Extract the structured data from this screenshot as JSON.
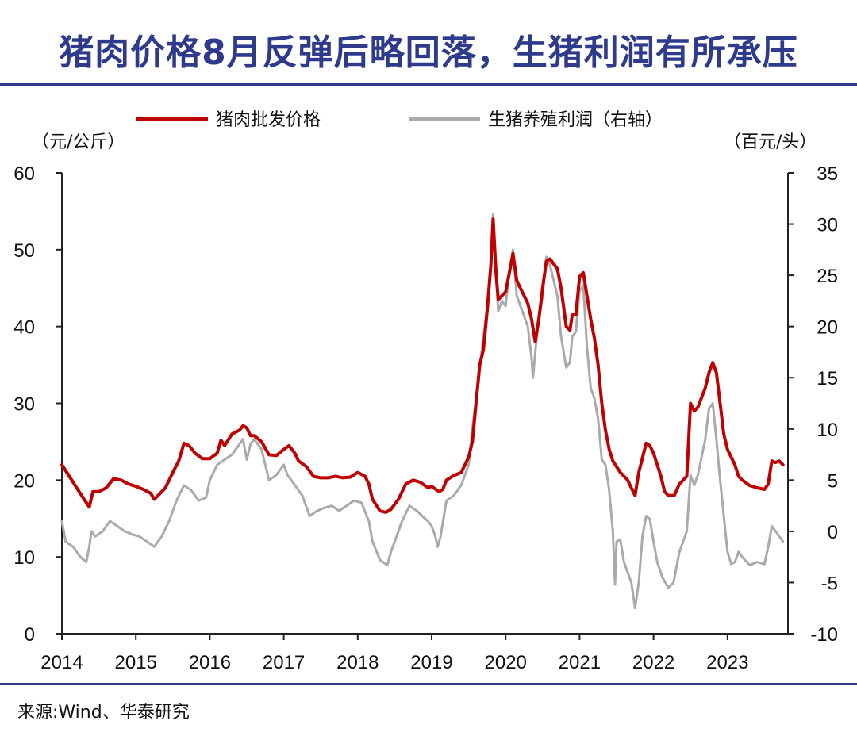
{
  "title": "猪肉价格8月反弹后略回落，生猪利润有所承压",
  "source": "来源:Wind、华泰研究",
  "chart_data": {
    "type": "line",
    "left_unit": "（元/公斤）",
    "right_unit": "（百元/头）",
    "y_left": {
      "min": 0,
      "max": 60,
      "ticks": [
        0,
        10,
        20,
        30,
        40,
        50,
        60
      ]
    },
    "y_right": {
      "min": -10,
      "max": 35,
      "ticks": [
        -10,
        -5,
        0,
        5,
        10,
        15,
        20,
        25,
        30,
        35
      ]
    },
    "x_ticks": [
      "2014",
      "2015",
      "2016",
      "2017",
      "2018",
      "2019",
      "2020",
      "2021",
      "2022",
      "2023"
    ],
    "x_range": [
      2014.0,
      2023.85
    ],
    "series": [
      {
        "name": "猪肉批发价格",
        "axis": "left",
        "color": "#c00000",
        "points": [
          [
            2014.0,
            22
          ],
          [
            2014.1,
            20.5
          ],
          [
            2014.2,
            19
          ],
          [
            2014.3,
            17.5
          ],
          [
            2014.37,
            16.5
          ],
          [
            2014.42,
            18.5
          ],
          [
            2014.5,
            18.5
          ],
          [
            2014.6,
            19
          ],
          [
            2014.7,
            20.2
          ],
          [
            2014.8,
            20
          ],
          [
            2014.9,
            19.5
          ],
          [
            2015.0,
            19.2
          ],
          [
            2015.1,
            18.8
          ],
          [
            2015.2,
            18.3
          ],
          [
            2015.25,
            17.5
          ],
          [
            2015.3,
            18
          ],
          [
            2015.4,
            19
          ],
          [
            2015.5,
            21
          ],
          [
            2015.58,
            22.5
          ],
          [
            2015.65,
            24.8
          ],
          [
            2015.72,
            24.5
          ],
          [
            2015.8,
            23.5
          ],
          [
            2015.9,
            22.8
          ],
          [
            2016.0,
            22.8
          ],
          [
            2016.1,
            23.5
          ],
          [
            2016.15,
            25.2
          ],
          [
            2016.2,
            24.5
          ],
          [
            2016.3,
            26
          ],
          [
            2016.4,
            26.5
          ],
          [
            2016.45,
            27.1
          ],
          [
            2016.5,
            26.8
          ],
          [
            2016.55,
            25.8
          ],
          [
            2016.6,
            25.8
          ],
          [
            2016.7,
            25
          ],
          [
            2016.8,
            23.3
          ],
          [
            2016.9,
            23.2
          ],
          [
            2017.0,
            24
          ],
          [
            2017.07,
            24.5
          ],
          [
            2017.15,
            23.5
          ],
          [
            2017.2,
            22.5
          ],
          [
            2017.3,
            21.8
          ],
          [
            2017.35,
            21.2
          ],
          [
            2017.4,
            20.5
          ],
          [
            2017.5,
            20.3
          ],
          [
            2017.6,
            20.3
          ],
          [
            2017.7,
            20.5
          ],
          [
            2017.8,
            20.3
          ],
          [
            2017.9,
            20.4
          ],
          [
            2018.0,
            21
          ],
          [
            2018.1,
            20.5
          ],
          [
            2018.15,
            19.5
          ],
          [
            2018.2,
            17.5
          ],
          [
            2018.3,
            16
          ],
          [
            2018.38,
            15.8
          ],
          [
            2018.45,
            16.2
          ],
          [
            2018.55,
            17.5
          ],
          [
            2018.65,
            19.5
          ],
          [
            2018.75,
            20
          ],
          [
            2018.85,
            19.7
          ],
          [
            2018.95,
            19
          ],
          [
            2019.0,
            19.2
          ],
          [
            2019.1,
            18.5
          ],
          [
            2019.15,
            18.8
          ],
          [
            2019.2,
            20
          ],
          [
            2019.3,
            20.6
          ],
          [
            2019.4,
            21
          ],
          [
            2019.5,
            23
          ],
          [
            2019.55,
            25
          ],
          [
            2019.6,
            30
          ],
          [
            2019.65,
            35
          ],
          [
            2019.7,
            37
          ],
          [
            2019.75,
            42
          ],
          [
            2019.8,
            48
          ],
          [
            2019.83,
            54
          ],
          [
            2019.87,
            47
          ],
          [
            2019.9,
            43.5
          ],
          [
            2019.95,
            44
          ],
          [
            2020.0,
            44.5
          ],
          [
            2020.05,
            47
          ],
          [
            2020.1,
            49.5
          ],
          [
            2020.15,
            46
          ],
          [
            2020.2,
            45
          ],
          [
            2020.3,
            43
          ],
          [
            2020.35,
            41
          ],
          [
            2020.4,
            38
          ],
          [
            2020.45,
            41
          ],
          [
            2020.5,
            45
          ],
          [
            2020.55,
            48.5
          ],
          [
            2020.6,
            48.8
          ],
          [
            2020.7,
            47.5
          ],
          [
            2020.75,
            45
          ],
          [
            2020.82,
            40
          ],
          [
            2020.87,
            39.5
          ],
          [
            2020.9,
            41.5
          ],
          [
            2020.95,
            41.5
          ],
          [
            2021.0,
            46.5
          ],
          [
            2021.05,
            47
          ],
          [
            2021.1,
            44
          ],
          [
            2021.15,
            41
          ],
          [
            2021.2,
            38.5
          ],
          [
            2021.25,
            35
          ],
          [
            2021.3,
            30
          ],
          [
            2021.35,
            26.5
          ],
          [
            2021.4,
            24
          ],
          [
            2021.45,
            22.5
          ],
          [
            2021.55,
            21
          ],
          [
            2021.65,
            20
          ],
          [
            2021.7,
            19
          ],
          [
            2021.75,
            18
          ],
          [
            2021.8,
            21
          ],
          [
            2021.9,
            24.8
          ],
          [
            2021.95,
            24.5
          ],
          [
            2022.0,
            23.5
          ],
          [
            2022.05,
            22
          ],
          [
            2022.1,
            20.5
          ],
          [
            2022.15,
            18.5
          ],
          [
            2022.2,
            18
          ],
          [
            2022.28,
            18
          ],
          [
            2022.35,
            19.5
          ],
          [
            2022.45,
            20.5
          ],
          [
            2022.5,
            30
          ],
          [
            2022.55,
            29
          ],
          [
            2022.6,
            29.5
          ],
          [
            2022.7,
            32
          ],
          [
            2022.75,
            34
          ],
          [
            2022.8,
            35.3
          ],
          [
            2022.85,
            34
          ],
          [
            2022.9,
            30
          ],
          [
            2022.95,
            26
          ],
          [
            2023.0,
            24
          ],
          [
            2023.1,
            22
          ],
          [
            2023.15,
            20.5
          ],
          [
            2023.2,
            20
          ],
          [
            2023.3,
            19.3
          ],
          [
            2023.4,
            19
          ],
          [
            2023.5,
            18.8
          ],
          [
            2023.55,
            19.5
          ],
          [
            2023.6,
            22.5
          ],
          [
            2023.65,
            22.3
          ],
          [
            2023.7,
            22.5
          ],
          [
            2023.75,
            22
          ]
        ]
      },
      {
        "name": "生猪养殖利润（右轴）",
        "axis": "right",
        "color": "#aaaaaa",
        "points": [
          [
            2014.0,
            1
          ],
          [
            2014.05,
            -1
          ],
          [
            2014.15,
            -1.5
          ],
          [
            2014.25,
            -2.5
          ],
          [
            2014.33,
            -3
          ],
          [
            2014.37,
            -1.5
          ],
          [
            2014.4,
            0
          ],
          [
            2014.45,
            -0.5
          ],
          [
            2014.55,
            0
          ],
          [
            2014.65,
            1
          ],
          [
            2014.75,
            0.5
          ],
          [
            2014.85,
            0
          ],
          [
            2014.95,
            -0.3
          ],
          [
            2015.05,
            -0.5
          ],
          [
            2015.15,
            -1
          ],
          [
            2015.25,
            -1.5
          ],
          [
            2015.35,
            -0.5
          ],
          [
            2015.45,
            1
          ],
          [
            2015.55,
            3
          ],
          [
            2015.65,
            4.5
          ],
          [
            2015.75,
            4
          ],
          [
            2015.85,
            3
          ],
          [
            2015.95,
            3.3
          ],
          [
            2016.0,
            5
          ],
          [
            2016.1,
            6.5
          ],
          [
            2016.2,
            7
          ],
          [
            2016.3,
            7.5
          ],
          [
            2016.4,
            8.5
          ],
          [
            2016.45,
            9
          ],
          [
            2016.5,
            7
          ],
          [
            2016.55,
            8.5
          ],
          [
            2016.6,
            9
          ],
          [
            2016.7,
            8
          ],
          [
            2016.8,
            5
          ],
          [
            2016.9,
            5.5
          ],
          [
            2017.0,
            6.5
          ],
          [
            2017.05,
            5.5
          ],
          [
            2017.15,
            4.5
          ],
          [
            2017.25,
            3.5
          ],
          [
            2017.35,
            1.5
          ],
          [
            2017.45,
            2
          ],
          [
            2017.55,
            2.3
          ],
          [
            2017.65,
            2.5
          ],
          [
            2017.75,
            2
          ],
          [
            2017.85,
            2.5
          ],
          [
            2017.95,
            3
          ],
          [
            2018.05,
            2.8
          ],
          [
            2018.15,
            1
          ],
          [
            2018.2,
            -1
          ],
          [
            2018.3,
            -2.8
          ],
          [
            2018.4,
            -3.3
          ],
          [
            2018.45,
            -2
          ],
          [
            2018.5,
            -1
          ],
          [
            2018.6,
            1
          ],
          [
            2018.7,
            2.5
          ],
          [
            2018.8,
            2
          ],
          [
            2018.9,
            1.3
          ],
          [
            2018.95,
            1
          ],
          [
            2019.0,
            0.5
          ],
          [
            2019.05,
            -0.5
          ],
          [
            2019.08,
            -1.5
          ],
          [
            2019.12,
            -0.5
          ],
          [
            2019.2,
            3
          ],
          [
            2019.3,
            3.5
          ],
          [
            2019.4,
            4.5
          ],
          [
            2019.5,
            6.5
          ],
          [
            2019.55,
            10
          ],
          [
            2019.6,
            13
          ],
          [
            2019.65,
            16
          ],
          [
            2019.7,
            19
          ],
          [
            2019.75,
            22
          ],
          [
            2019.8,
            26
          ],
          [
            2019.83,
            31
          ],
          [
            2019.87,
            25
          ],
          [
            2019.9,
            21.5
          ],
          [
            2019.95,
            22.5
          ],
          [
            2020.0,
            22
          ],
          [
            2020.05,
            25.5
          ],
          [
            2020.1,
            27.5
          ],
          [
            2020.15,
            23
          ],
          [
            2020.2,
            22
          ],
          [
            2020.3,
            20
          ],
          [
            2020.35,
            17
          ],
          [
            2020.37,
            15
          ],
          [
            2020.42,
            19
          ],
          [
            2020.5,
            23
          ],
          [
            2020.55,
            26.8
          ],
          [
            2020.6,
            26
          ],
          [
            2020.7,
            23
          ],
          [
            2020.75,
            19
          ],
          [
            2020.82,
            16
          ],
          [
            2020.87,
            16.5
          ],
          [
            2020.9,
            19
          ],
          [
            2020.95,
            19.5
          ],
          [
            2021.0,
            23.5
          ],
          [
            2021.05,
            24
          ],
          [
            2021.1,
            18
          ],
          [
            2021.15,
            14
          ],
          [
            2021.2,
            13
          ],
          [
            2021.25,
            11
          ],
          [
            2021.3,
            7
          ],
          [
            2021.35,
            6.5
          ],
          [
            2021.4,
            4
          ],
          [
            2021.45,
            0
          ],
          [
            2021.48,
            -5.2
          ],
          [
            2021.5,
            -1
          ],
          [
            2021.55,
            -0.8
          ],
          [
            2021.6,
            -3
          ],
          [
            2021.7,
            -5
          ],
          [
            2021.75,
            -7.5
          ],
          [
            2021.8,
            -5
          ],
          [
            2021.85,
            -0.5
          ],
          [
            2021.9,
            1.5
          ],
          [
            2021.95,
            1.2
          ],
          [
            2022.0,
            -1
          ],
          [
            2022.05,
            -3
          ],
          [
            2022.12,
            -4.5
          ],
          [
            2022.2,
            -5.5
          ],
          [
            2022.27,
            -5
          ],
          [
            2022.35,
            -2
          ],
          [
            2022.45,
            0
          ],
          [
            2022.5,
            5.5
          ],
          [
            2022.55,
            4.5
          ],
          [
            2022.6,
            5.5
          ],
          [
            2022.7,
            9
          ],
          [
            2022.75,
            12
          ],
          [
            2022.8,
            12.5
          ],
          [
            2022.85,
            9
          ],
          [
            2022.9,
            5
          ],
          [
            2022.95,
            1.5
          ],
          [
            2023.0,
            -2
          ],
          [
            2023.05,
            -3.2
          ],
          [
            2023.1,
            -3
          ],
          [
            2023.15,
            -2
          ],
          [
            2023.2,
            -2.5
          ],
          [
            2023.3,
            -3.3
          ],
          [
            2023.4,
            -3
          ],
          [
            2023.5,
            -3.2
          ],
          [
            2023.55,
            -1.5
          ],
          [
            2023.6,
            0.5
          ],
          [
            2023.65,
            0
          ],
          [
            2023.7,
            -0.5
          ],
          [
            2023.75,
            -1
          ]
        ]
      }
    ]
  }
}
